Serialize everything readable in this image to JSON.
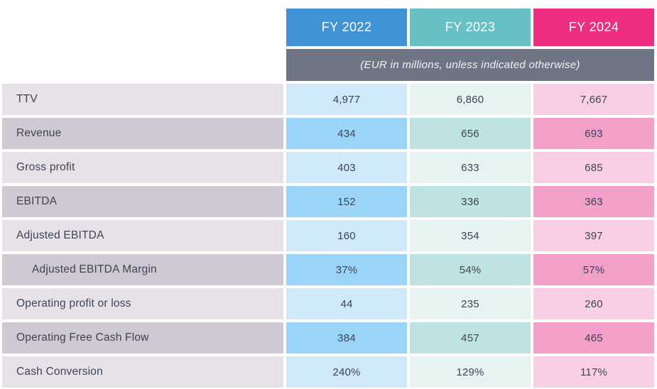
{
  "table": {
    "units_note": "(EUR in millions, unless indicated otherwise)",
    "columns": [
      {
        "label": "FY 2022",
        "header_color": "#4293d6",
        "cell_light": "#cfe8fa",
        "cell_dark": "#9ad4f7"
      },
      {
        "label": "FY 2023",
        "header_color": "#68c0c7",
        "cell_light": "#e6f3f1",
        "cell_dark": "#bfe3e2"
      },
      {
        "label": "FY 2024",
        "header_color": "#ee2e7e",
        "cell_light": "#f9cfe6",
        "cell_dark": "#f2a0ca"
      }
    ],
    "units_band_color": "#6e7585",
    "label_row_light": "#e6e2e7",
    "label_row_dark": "#cfc9d3",
    "text_color": "#3e4356",
    "rows": [
      {
        "label": "TTV",
        "values": [
          "4,977",
          "6,860",
          "7,667"
        ]
      },
      {
        "label": "Revenue",
        "values": [
          "434",
          "656",
          "693"
        ]
      },
      {
        "label": "Gross profit",
        "values": [
          "403",
          "633",
          "685"
        ]
      },
      {
        "label": "EBITDA",
        "values": [
          "152",
          "336",
          "363"
        ]
      },
      {
        "label": "Adjusted EBITDA",
        "values": [
          "160",
          "354",
          "397"
        ]
      },
      {
        "label": "Adjusted EBITDA Margin",
        "values": [
          "37%",
          "54%",
          "57%"
        ]
      },
      {
        "label": "Operating profit or loss",
        "values": [
          "44",
          "235",
          "260"
        ]
      },
      {
        "label": "Operating Free Cash Flow",
        "values": [
          "384",
          "457",
          "465"
        ]
      },
      {
        "label": "Cash Conversion",
        "values": [
          "240%",
          "129%",
          "117%"
        ]
      }
    ]
  }
}
